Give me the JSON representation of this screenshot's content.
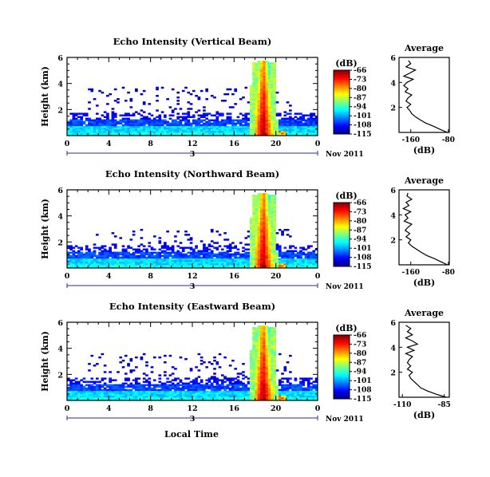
{
  "figure": {
    "bottom_xlabel": "Local Time"
  },
  "chart_data": [
    {
      "type": "heatmap",
      "title": "Echo Intensity (Vertical Beam)",
      "ylabel": "Height (km)",
      "xlabel": "",
      "x_ticks": [
        "0",
        "4",
        "8",
        "12",
        "16",
        "20",
        "0"
      ],
      "x_range": [
        0,
        24
      ],
      "y_ticks": [
        "2",
        "4",
        "6"
      ],
      "y_range": [
        0,
        6
      ],
      "date_day": "3",
      "date_label": "Nov 2011",
      "colorbar": {
        "unit": "(dB)",
        "ticks": [
          "-66",
          "-73",
          "-80",
          "-87",
          "-94",
          "-101",
          "-108",
          "-115"
        ],
        "range": [
          -115,
          -66
        ]
      },
      "average_profile": {
        "title": "Average",
        "xlabel": "(dB)",
        "x_ticks": [
          "-160",
          "-80"
        ],
        "x_range": [
          -185,
          -78
        ],
        "y_ticks": [
          "2",
          "4",
          "6"
        ],
        "y": [
          0.0,
          0.25,
          0.5,
          0.75,
          1.0,
          1.25,
          1.5,
          1.75,
          2.0,
          2.25,
          2.5,
          2.75,
          3.0,
          3.25,
          3.5,
          3.75,
          4.0,
          4.25,
          4.5,
          4.75,
          5.0,
          5.25,
          5.5,
          5.75
        ],
        "values": [
          -82,
          -98,
          -112,
          -128,
          -140,
          -150,
          -158,
          -162,
          -168,
          -160,
          -170,
          -166,
          -158,
          -172,
          -166,
          -175,
          -168,
          -155,
          -175,
          -162,
          -150,
          -170,
          -160,
          -165
        ]
      }
    },
    {
      "type": "heatmap",
      "title": "Echo Intensity (Northward Beam)",
      "ylabel": "Height (km)",
      "xlabel": "",
      "x_ticks": [
        "0",
        "4",
        "8",
        "12",
        "16",
        "20",
        "0"
      ],
      "x_range": [
        0,
        24
      ],
      "y_ticks": [
        "2",
        "4",
        "6"
      ],
      "y_range": [
        0,
        6
      ],
      "date_day": "3",
      "date_label": "Nov 2011",
      "colorbar": {
        "unit": "(dB)",
        "ticks": [
          "-66",
          "-73",
          "-80",
          "-87",
          "-94",
          "-101",
          "-108",
          "-115"
        ],
        "range": [
          -115,
          -66
        ]
      },
      "average_profile": {
        "title": "Average",
        "xlabel": "(dB)",
        "x_ticks": [
          "-160",
          "-80"
        ],
        "x_range": [
          -185,
          -78
        ],
        "y_ticks": [
          "2",
          "4",
          "6"
        ],
        "y": [
          0.0,
          0.25,
          0.5,
          0.75,
          1.0,
          1.25,
          1.5,
          1.75,
          2.0,
          2.25,
          2.5,
          2.75,
          3.0,
          3.25,
          3.5,
          3.75,
          4.0,
          4.25,
          4.5,
          4.75,
          5.0,
          5.25,
          5.5,
          5.75
        ],
        "values": [
          -82,
          -96,
          -110,
          -126,
          -138,
          -148,
          -158,
          -165,
          -160,
          -170,
          -162,
          -172,
          -166,
          -158,
          -174,
          -166,
          -172,
          -160,
          -176,
          -164,
          -170,
          -158,
          -168,
          -166
        ]
      }
    },
    {
      "type": "heatmap",
      "title": "Echo Intensity (Eastward Beam)",
      "ylabel": "Height (km)",
      "xlabel": "",
      "x_ticks": [
        "0",
        "4",
        "8",
        "12",
        "16",
        "20",
        "0"
      ],
      "x_range": [
        0,
        24
      ],
      "y_ticks": [
        "2",
        "4",
        "6"
      ],
      "y_range": [
        0,
        6
      ],
      "date_day": "3",
      "date_label": "Nov 2011",
      "colorbar": {
        "unit": "(dB)",
        "ticks": [
          "-66",
          "-73",
          "-80",
          "-87",
          "-94",
          "-101",
          "-108",
          "-115"
        ],
        "range": [
          -115,
          -66
        ]
      },
      "average_profile": {
        "title": "Average",
        "xlabel": "(dB)",
        "x_ticks": [
          "-110",
          "-85"
        ],
        "x_range": [
          -112,
          -82
        ],
        "y_ticks": [
          "2",
          "4",
          "6"
        ],
        "y": [
          0.0,
          0.25,
          0.5,
          0.75,
          1.0,
          1.25,
          1.5,
          1.75,
          2.0,
          2.25,
          2.5,
          2.75,
          3.0,
          3.25,
          3.5,
          3.75,
          4.0,
          4.25,
          4.5,
          4.75,
          5.0,
          5.25,
          5.5,
          5.75
        ],
        "values": [
          -84,
          -90,
          -95,
          -99,
          -101,
          -103,
          -105,
          -106,
          -104,
          -107,
          -105,
          -107,
          -106,
          -104,
          -108,
          -103,
          -107,
          -101,
          -104,
          -108,
          -104,
          -107,
          -105,
          -108
        ]
      }
    }
  ]
}
